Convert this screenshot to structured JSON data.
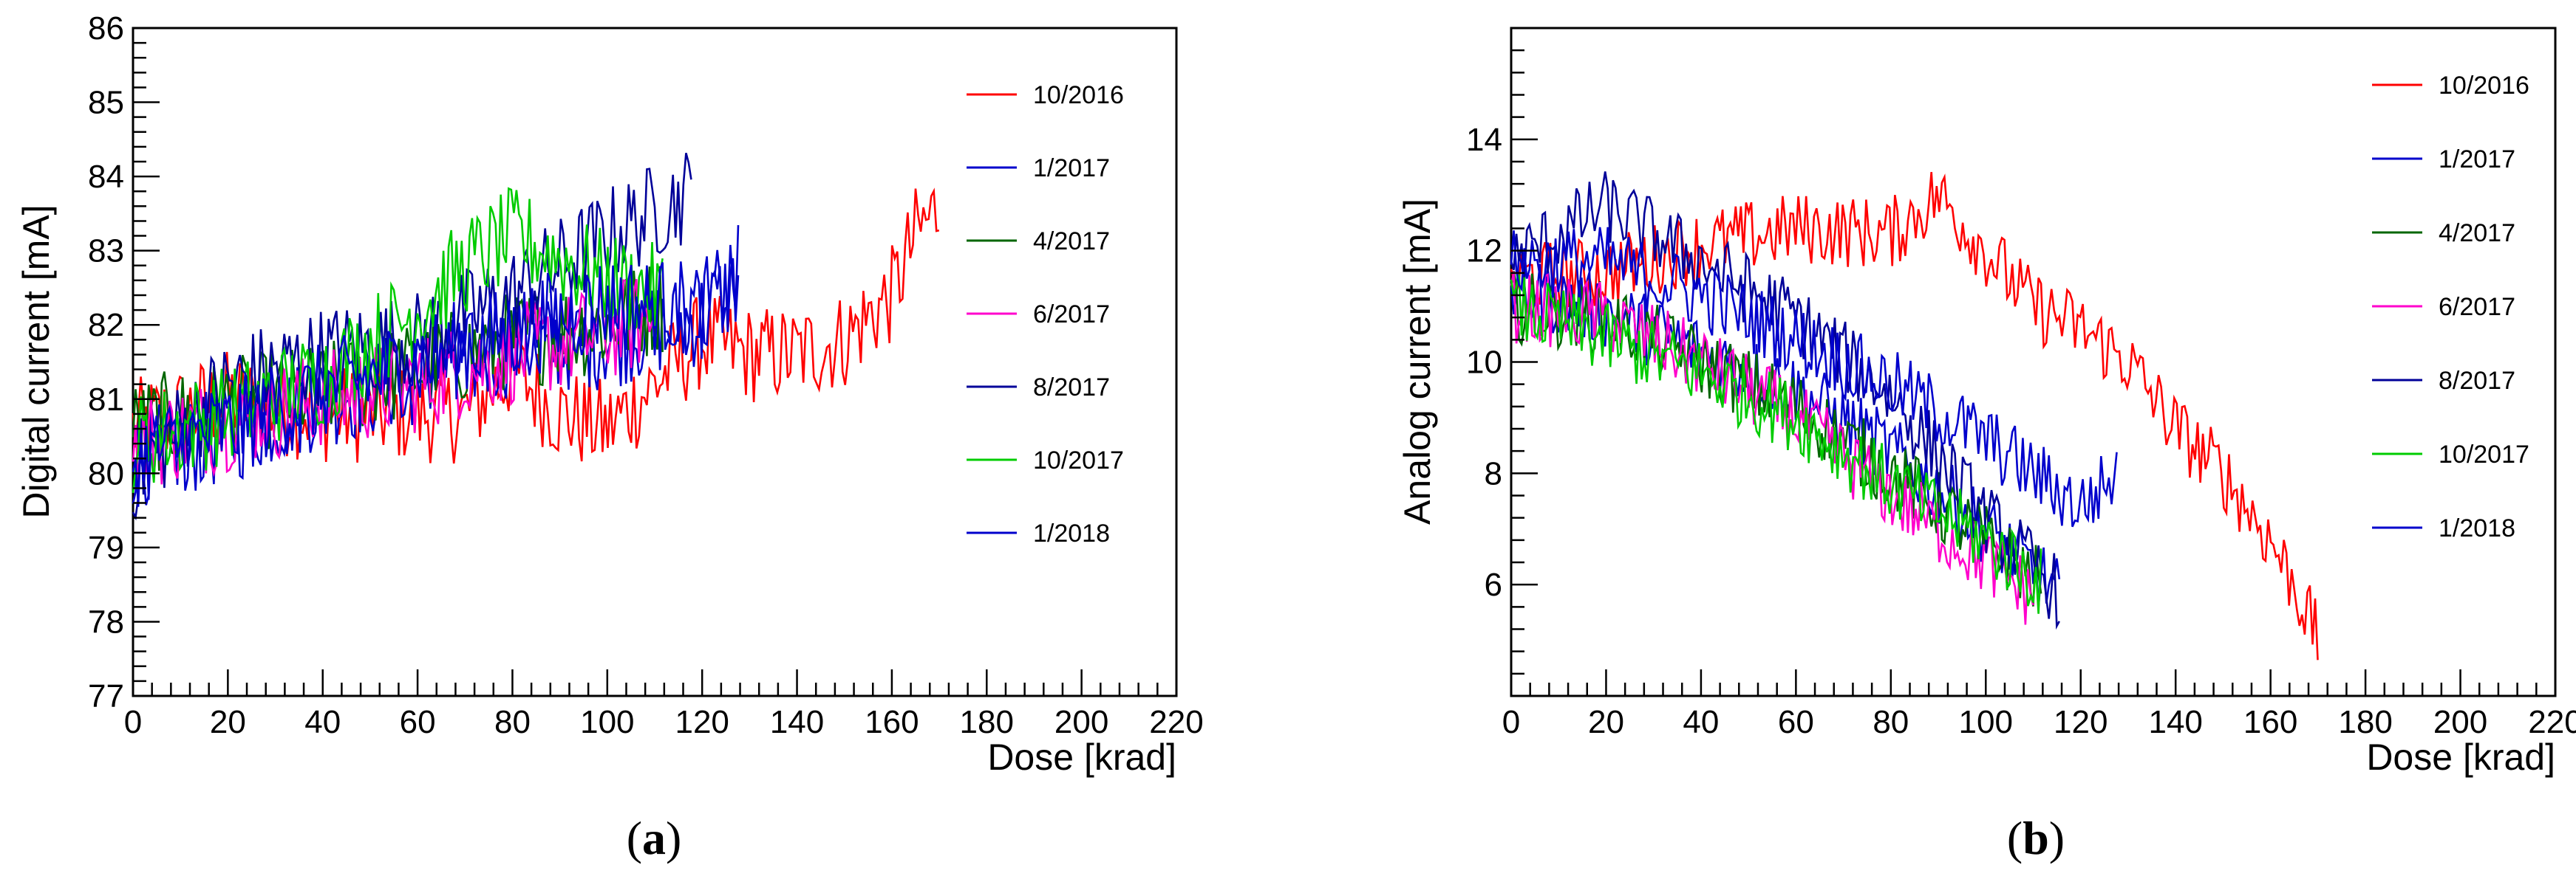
{
  "chart_data": [
    {
      "type": "line",
      "panel_label": "(a)",
      "caption_paren_open": "(",
      "caption_letter": "a",
      "caption_paren_close": ")",
      "xlabel": "Dose [krad]",
      "ylabel": "Digital current [mA]",
      "xlim": [
        0,
        220
      ],
      "ylim": [
        77,
        86
      ],
      "xticks": [
        "0",
        "20",
        "40",
        "60",
        "80",
        "100",
        "120",
        "140",
        "160",
        "180",
        "200",
        "220"
      ],
      "yticks": [
        "77",
        "78",
        "79",
        "80",
        "81",
        "82",
        "83",
        "84",
        "85",
        "86"
      ],
      "legend": [
        {
          "name": "10/2016",
          "color": "#ff0000"
        },
        {
          "name": "1/2017",
          "color": "#0000cc"
        },
        {
          "name": "4/2017",
          "color": "#006600"
        },
        {
          "name": "6/2017",
          "color": "#ff00cc"
        },
        {
          "name": "8/2017",
          "color": "#000099"
        },
        {
          "name": "10/2017",
          "color": "#00cc00"
        },
        {
          "name": "1/2018",
          "color": "#0000cc"
        }
      ],
      "series": [
        {
          "name": "10/2016",
          "color": "#ff0000",
          "x": [
            0,
            20,
            40,
            60,
            70,
            80,
            90,
            100,
            110,
            120,
            130,
            140,
            150,
            160,
            165,
            170
          ],
          "y": [
            80.6,
            81.0,
            80.8,
            80.8,
            80.8,
            81.4,
            80.8,
            80.6,
            81.2,
            81.8,
            81.6,
            81.6,
            81.8,
            82.4,
            83.2,
            83.6
          ]
        },
        {
          "name": "1/2017",
          "color": "#0000cc",
          "x": [
            0,
            20,
            40,
            60,
            80,
            100,
            120,
            128
          ],
          "y": [
            80.2,
            80.5,
            81.0,
            81.3,
            81.7,
            81.8,
            82.1,
            82.6
          ]
        },
        {
          "name": "4/2017",
          "color": "#006600",
          "x": [
            0,
            20,
            40,
            60,
            80,
            100,
            112
          ],
          "y": [
            80.6,
            80.9,
            81.1,
            81.4,
            81.8,
            82.0,
            82.3
          ]
        },
        {
          "name": "6/2017",
          "color": "#ff00cc",
          "x": [
            0,
            20,
            40,
            60,
            80,
            100,
            110
          ],
          "y": [
            80.4,
            80.7,
            81.0,
            81.2,
            81.6,
            81.9,
            82.1
          ]
        },
        {
          "name": "8/2017",
          "color": "#000099",
          "x": [
            0,
            20,
            40,
            60,
            80,
            100,
            118
          ],
          "y": [
            80.0,
            81.2,
            81.6,
            81.8,
            82.4,
            83.2,
            83.8
          ]
        },
        {
          "name": "10/2017",
          "color": "#00cc00",
          "x": [
            0,
            20,
            40,
            60,
            70,
            80,
            90,
            100,
            112
          ],
          "y": [
            80.4,
            80.8,
            81.3,
            82.2,
            82.8,
            83.2,
            82.9,
            82.6,
            82.4
          ]
        },
        {
          "name": "1/2018",
          "color": "#0000cc",
          "x": [
            0,
            20,
            40,
            60,
            80,
            100,
            120,
            128
          ],
          "y": [
            80.2,
            80.6,
            81.1,
            81.5,
            81.9,
            82.3,
            82.2,
            82.7
          ]
        }
      ]
    },
    {
      "type": "line",
      "panel_label": "(b)",
      "caption_paren_open": "(",
      "caption_letter": "b",
      "caption_paren_close": ")",
      "xlabel": "Dose [krad]",
      "ylabel": "Analog current [mA]",
      "xlim": [
        0,
        220
      ],
      "ylim": [
        4,
        16
      ],
      "xticks": [
        "0",
        "20",
        "40",
        "60",
        "80",
        "100",
        "120",
        "140",
        "160",
        "180",
        "200",
        "220"
      ],
      "yticks": [
        "6",
        "8",
        "10",
        "12",
        "14"
      ],
      "ytick_values": [
        6,
        8,
        10,
        12,
        14
      ],
      "legend": [
        {
          "name": "10/2016",
          "color": "#ff0000"
        },
        {
          "name": "1/2017",
          "color": "#0000cc"
        },
        {
          "name": "4/2017",
          "color": "#006600"
        },
        {
          "name": "6/2017",
          "color": "#ff00cc"
        },
        {
          "name": "8/2017",
          "color": "#000099"
        },
        {
          "name": "10/2017",
          "color": "#00cc00"
        },
        {
          "name": "1/2018",
          "color": "#0000cc"
        }
      ],
      "series": [
        {
          "name": "10/2016",
          "color": "#ff0000",
          "x": [
            0,
            20,
            40,
            60,
            80,
            90,
            100,
            110,
            120,
            130,
            140,
            150,
            160,
            165,
            170
          ],
          "y": [
            11.5,
            11.6,
            12.1,
            12.4,
            12.3,
            13.0,
            12.0,
            11.0,
            10.6,
            10.0,
            8.8,
            8.0,
            6.8,
            6.0,
            5.0
          ]
        },
        {
          "name": "1/2017",
          "color": "#0000cc",
          "x": [
            0,
            20,
            40,
            60,
            80,
            100,
            116
          ],
          "y": [
            11.3,
            10.9,
            10.2,
            9.5,
            8.4,
            7.0,
            5.8
          ]
        },
        {
          "name": "4/2017",
          "color": "#006600",
          "x": [
            0,
            20,
            40,
            60,
            80,
            100,
            112
          ],
          "y": [
            11.0,
            10.8,
            10.0,
            9.2,
            8.0,
            6.8,
            6.0
          ]
        },
        {
          "name": "6/2017",
          "color": "#ff00cc",
          "x": [
            0,
            20,
            40,
            60,
            80,
            100,
            110
          ],
          "y": [
            11.0,
            10.8,
            10.0,
            9.0,
            7.6,
            6.4,
            5.8
          ]
        },
        {
          "name": "8/2017",
          "color": "#000099",
          "x": [
            0,
            20,
            40,
            60,
            80,
            100,
            116
          ],
          "y": [
            11.8,
            12.8,
            11.8,
            10.8,
            9.4,
            7.2,
            5.8
          ]
        },
        {
          "name": "10/2017",
          "color": "#00cc00",
          "x": [
            0,
            20,
            40,
            60,
            80,
            100,
            112
          ],
          "y": [
            11.0,
            10.4,
            9.8,
            9.0,
            7.8,
            6.8,
            6.0
          ]
        },
        {
          "name": "1/2018",
          "color": "#0000cc",
          "x": [
            0,
            20,
            40,
            60,
            80,
            100,
            120,
            128
          ],
          "y": [
            11.8,
            11.8,
            11.2,
            10.4,
            9.6,
            8.6,
            7.4,
            8.0
          ]
        }
      ]
    }
  ]
}
